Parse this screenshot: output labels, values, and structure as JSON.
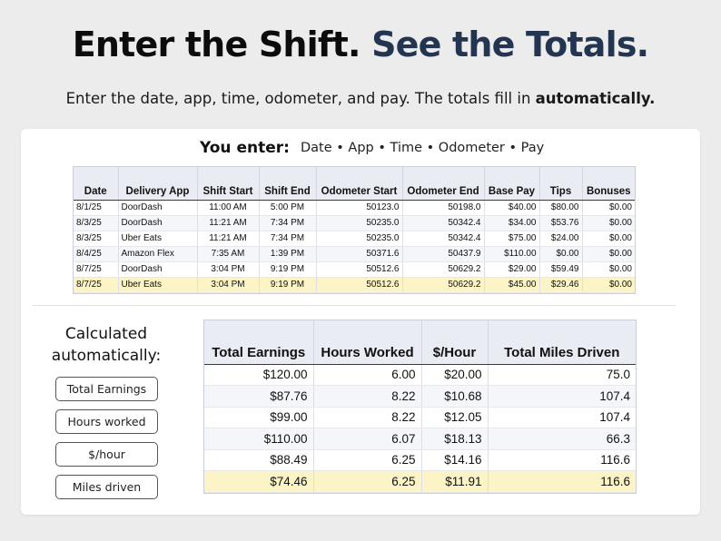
{
  "headline": {
    "part1": "Enter the Shift.",
    "part2": "See the Totals."
  },
  "subhead": {
    "text": "Enter the date, app, time, odometer, and pay. The totals fill in",
    "bold": "automatically."
  },
  "entry_section": {
    "label": "You enter:",
    "fields": "Date • App • Time • Odometer • Pay"
  },
  "entry_table": {
    "columns": [
      "Date",
      "Delivery App",
      "Shift Start",
      "Shift End",
      "Odometer Start",
      "Odometer End",
      "Base Pay",
      "Tips",
      "Bonuses"
    ],
    "rows": [
      [
        "8/1/25",
        "DoorDash",
        "11:00 AM",
        "5:00 PM",
        "50123.0",
        "50198.0",
        "$40.00",
        "$80.00",
        "$0.00"
      ],
      [
        "8/3/25",
        "DoorDash",
        "11:21 AM",
        "7:34 PM",
        "50235.0",
        "50342.4",
        "$34.00",
        "$53.76",
        "$0.00"
      ],
      [
        "8/3/25",
        "Uber Eats",
        "11:21 AM",
        "7:34 PM",
        "50235.0",
        "50342.4",
        "$75.00",
        "$24.00",
        "$0.00"
      ],
      [
        "8/4/25",
        "Amazon Flex",
        "7:35 AM",
        "1:39 PM",
        "50371.6",
        "50437.9",
        "$110.00",
        "$0.00",
        "$0.00"
      ],
      [
        "8/7/25",
        "DoorDash",
        "3:04 PM",
        "9:19 PM",
        "50512.6",
        "50629.2",
        "$29.00",
        "$59.49",
        "$0.00"
      ],
      [
        "8/7/25",
        "Uber Eats",
        "3:04 PM",
        "9:19 PM",
        "50512.6",
        "50629.2",
        "$45.00",
        "$29.46",
        "$0.00"
      ]
    ]
  },
  "calc_section": {
    "title_line1": "Calculated",
    "title_line2": "automatically:",
    "pills": [
      "Total Earnings",
      "Hours worked",
      "$/hour",
      "Miles driven"
    ]
  },
  "totals_table": {
    "columns": [
      "Total Earnings",
      "Hours Worked",
      "$/Hour",
      "Total Miles Driven"
    ],
    "rows": [
      [
        "$120.00",
        "6.00",
        "$20.00",
        "75.0"
      ],
      [
        "$87.76",
        "8.22",
        "$10.68",
        "107.4"
      ],
      [
        "$99.00",
        "8.22",
        "$12.05",
        "107.4"
      ],
      [
        "$110.00",
        "6.07",
        "$18.13",
        "66.3"
      ],
      [
        "$88.49",
        "6.25",
        "$14.16",
        "116.6"
      ],
      [
        "$74.46",
        "6.25",
        "$11.91",
        "116.6"
      ]
    ]
  },
  "colors": {
    "accent": "#243551",
    "highlight_row": "#fcf3c6",
    "header_bg": "#e9ecf3",
    "background": "#ececec"
  }
}
